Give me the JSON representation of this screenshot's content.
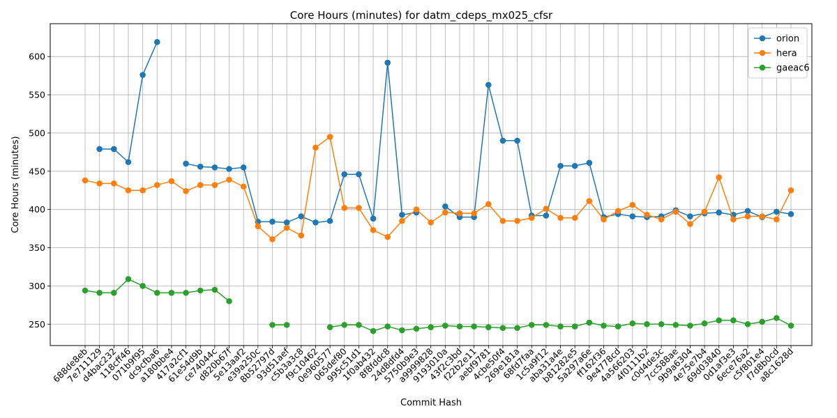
{
  "chart_data": {
    "type": "line",
    "title": "Core Hours (minutes) for datm_cdeps_mx025_cfsr",
    "xlabel": "Commit Hash",
    "ylabel": "Core Hours (minutes)",
    "ylim": [
      222,
      643
    ],
    "yticks": [
      250,
      300,
      350,
      400,
      450,
      500,
      550,
      600
    ],
    "grid": true,
    "legend_position": "top-right",
    "categories": [
      "688de8eb",
      "7e711129",
      "d4bac232",
      "118cff46",
      "071b9f95",
      "dc9cfba6",
      "a180bbe4",
      "417a2cf1",
      "61e54d9b",
      "ce74044c",
      "d820b67f",
      "5e13aaf2",
      "e39a250c",
      "8b52797d",
      "93d51aef",
      "c5b3a3c8",
      "f9c10462",
      "0e960577",
      "065def80",
      "995c51d1",
      "1f0ab432",
      "8f8fddc8",
      "24d8dfd4",
      "5750b9e3",
      "a9999828",
      "9193010a",
      "43f2c3bd",
      "f22b2e11",
      "aebf9781",
      "4cbe50f4",
      "269e181a",
      "68fd7faa",
      "1c5a9f12",
      "aba31a4e",
      "b81282e5",
      "5a297a6e",
      "ff162f36",
      "9e4778cd",
      "4a566203",
      "4f0111b2",
      "c0d4de3c",
      "7cc588ae",
      "9b9a6304",
      "4e75e7b4",
      "69d03840",
      "0d1af3e3",
      "6ece76a2",
      "c5f801e4",
      "f7d8b0cd",
      "a8c1628d"
    ],
    "series": [
      {
        "name": "orion",
        "color": "#1f77b4",
        "values": [
          null,
          479,
          479,
          462,
          576,
          619,
          null,
          460,
          456,
          455,
          453,
          455,
          384,
          384,
          383,
          391,
          383,
          385,
          446,
          446,
          388,
          592,
          393,
          396,
          null,
          404,
          390,
          390,
          563,
          490,
          490,
          392,
          392,
          457,
          457,
          461,
          390,
          394,
          391,
          390,
          391,
          399,
          391,
          395,
          396,
          393,
          398,
          390,
          397,
          394
        ]
      },
      {
        "name": "hera",
        "color": "#ff7f0e",
        "values": [
          438,
          434,
          434,
          425,
          425,
          432,
          437,
          424,
          432,
          432,
          439,
          430,
          378,
          361,
          376,
          366,
          481,
          495,
          402,
          402,
          373,
          364,
          385,
          400,
          383,
          396,
          395,
          395,
          407,
          385,
          385,
          389,
          401,
          389,
          389,
          411,
          387,
          398,
          406,
          393,
          387,
          397,
          381,
          397,
          442,
          387,
          391,
          391,
          387,
          425
        ]
      },
      {
        "name": "gaeac6",
        "color": "#2ca02c",
        "values": [
          294,
          291,
          291,
          309,
          300,
          291,
          291,
          291,
          294,
          295,
          280,
          null,
          null,
          249,
          249,
          null,
          null,
          246,
          249,
          249,
          241,
          247,
          242,
          244,
          246,
          248,
          247,
          247,
          246,
          245,
          245,
          249,
          249,
          247,
          247,
          252,
          248,
          247,
          251,
          250,
          250,
          249,
          248,
          251,
          255,
          255,
          250,
          253,
          258,
          248
        ]
      }
    ]
  }
}
